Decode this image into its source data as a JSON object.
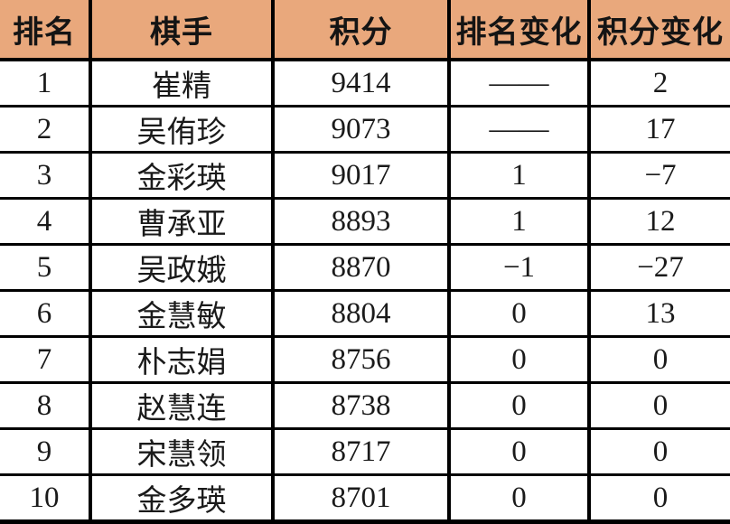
{
  "chart_data": {
    "type": "table",
    "columns": [
      "排名",
      "棋手",
      "积分",
      "排名变化",
      "积分变化"
    ],
    "column_keys": [
      "rank",
      "player",
      "points",
      "rank-change",
      "points-change"
    ],
    "rows": [
      [
        "1",
        "崔精",
        "9414",
        "——",
        "2"
      ],
      [
        "2",
        "吴侑珍",
        "9073",
        "——",
        "17"
      ],
      [
        "3",
        "金彩瑛",
        "9017",
        "1",
        "−7"
      ],
      [
        "4",
        "曹承亚",
        "8893",
        "1",
        "12"
      ],
      [
        "5",
        "吴政娥",
        "8870",
        "−1",
        "−27"
      ],
      [
        "6",
        "金慧敏",
        "8804",
        "0",
        "13"
      ],
      [
        "7",
        "朴志娟",
        "8756",
        "0",
        "0"
      ],
      [
        "8",
        "赵慧连",
        "8738",
        "0",
        "0"
      ],
      [
        "9",
        "宋慧领",
        "8717",
        "0",
        "0"
      ],
      [
        "10",
        "金多瑛",
        "8701",
        "0",
        "0"
      ]
    ],
    "layout_hints": {
      "header_row": true,
      "grid": "on",
      "alignment": "center"
    }
  },
  "colors": {
    "header_bg": "#E9A87C",
    "border": "#000000",
    "text": "#1A1A1A",
    "body_bg": "#FFFFFF"
  }
}
